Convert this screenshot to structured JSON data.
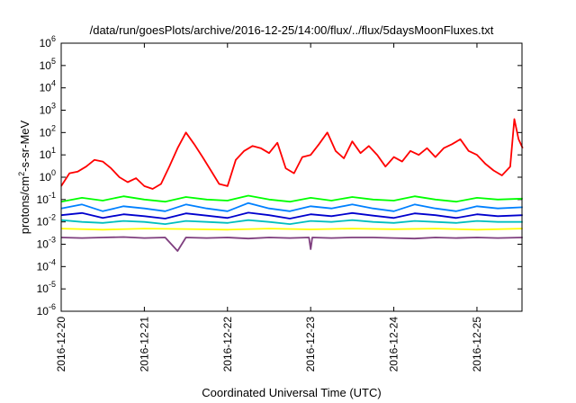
{
  "chart_data": {
    "type": "line",
    "title": "/data/run/goesPlots/archive/2016-12-25/14:00/flux/../flux/5daysMoonFluxes.txt",
    "xlabel": "Coordinated Universal Time (UTC)",
    "ylabel_parts": {
      "before": "protons/cm",
      "sup": "2",
      "after": "-s-sr-MeV"
    },
    "scale": "log",
    "ylim": [
      1e-06,
      1000000.0
    ],
    "xlim": [
      "2016-12-20T00:00",
      "2016-12-25T13:00"
    ],
    "x_ticks": [
      "2016-12-20",
      "2016-12-21",
      "2016-12-22",
      "2016-12-23",
      "2016-12-24",
      "2016-12-25"
    ],
    "y_ticks": [
      {
        "exp": -6,
        "base": "10",
        "sup": "-6"
      },
      {
        "exp": -5,
        "base": "10",
        "sup": "-5"
      },
      {
        "exp": -4,
        "base": "10",
        "sup": "-4"
      },
      {
        "exp": -3,
        "base": "10",
        "sup": "-3"
      },
      {
        "exp": -2,
        "base": "10",
        "sup": "-2"
      },
      {
        "exp": -1,
        "base": "10",
        "sup": "-1"
      },
      {
        "exp": 0,
        "base": "10",
        "sup": "0"
      },
      {
        "exp": 1,
        "base": "10",
        "sup": "1"
      },
      {
        "exp": 2,
        "base": "10",
        "sup": "2"
      },
      {
        "exp": 3,
        "base": "10",
        "sup": "3"
      },
      {
        "exp": 4,
        "base": "10",
        "sup": "4"
      },
      {
        "exp": 5,
        "base": "10",
        "sup": "5"
      },
      {
        "exp": 6,
        "base": "10",
        "sup": "6"
      }
    ],
    "grid": false,
    "legend": "none",
    "series": [
      {
        "color": "#ff0000",
        "x": [
          0,
          0.1,
          0.2,
          0.3,
          0.4,
          0.5,
          0.6,
          0.7,
          0.8,
          0.9,
          1.0,
          1.1,
          1.2,
          1.3,
          1.4,
          1.5,
          1.6,
          1.7,
          1.8,
          1.9,
          2.0,
          2.1,
          2.2,
          2.3,
          2.4,
          2.5,
          2.6,
          2.7,
          2.8,
          2.9,
          3.0,
          3.1,
          3.2,
          3.3,
          3.4,
          3.5,
          3.6,
          3.7,
          3.8,
          3.9,
          4.0,
          4.1,
          4.2,
          4.3,
          4.4,
          4.5,
          4.6,
          4.7,
          4.8,
          4.9,
          5.0,
          5.1,
          5.2,
          5.3,
          5.4,
          5.45,
          5.5,
          5.55
        ],
        "y": [
          0.4,
          1.5,
          1.8,
          3,
          6,
          5,
          2.5,
          1,
          0.6,
          0.9,
          0.4,
          0.3,
          0.5,
          3,
          20,
          100,
          30,
          8,
          2,
          0.5,
          0.4,
          6,
          15,
          25,
          20,
          12,
          35,
          2.5,
          1.5,
          8,
          10,
          30,
          100,
          15,
          7,
          40,
          12,
          25,
          10,
          3,
          8,
          5,
          15,
          10,
          20,
          8,
          20,
          30,
          50,
          15,
          10,
          4,
          2,
          1.2,
          3,
          400,
          50,
          20
        ]
      },
      {
        "color": "#00ff00",
        "x": [
          0,
          0.25,
          0.5,
          0.75,
          1.0,
          1.25,
          1.5,
          1.75,
          2.0,
          2.25,
          2.5,
          2.75,
          3.0,
          3.25,
          3.5,
          3.75,
          4.0,
          4.25,
          4.5,
          4.75,
          5.0,
          5.25,
          5.55
        ],
        "y": [
          0.08,
          0.12,
          0.09,
          0.14,
          0.1,
          0.08,
          0.13,
          0.1,
          0.09,
          0.15,
          0.1,
          0.08,
          0.12,
          0.09,
          0.13,
          0.1,
          0.09,
          0.14,
          0.1,
          0.08,
          0.12,
          0.1,
          0.11
        ]
      },
      {
        "color": "#0080ff",
        "x": [
          0,
          0.25,
          0.5,
          0.75,
          1.0,
          1.25,
          1.5,
          1.75,
          2.0,
          2.25,
          2.5,
          2.75,
          3.0,
          3.25,
          3.5,
          3.75,
          4.0,
          4.25,
          4.5,
          4.75,
          5.0,
          5.25,
          5.55
        ],
        "y": [
          0.04,
          0.06,
          0.03,
          0.05,
          0.04,
          0.03,
          0.06,
          0.04,
          0.03,
          0.07,
          0.04,
          0.03,
          0.05,
          0.04,
          0.06,
          0.04,
          0.03,
          0.06,
          0.04,
          0.03,
          0.05,
          0.04,
          0.045
        ]
      },
      {
        "color": "#0000cd",
        "x": [
          0,
          0.25,
          0.5,
          0.75,
          1.0,
          1.25,
          1.5,
          1.75,
          2.0,
          2.25,
          2.5,
          2.75,
          3.0,
          3.25,
          3.5,
          3.75,
          4.0,
          4.25,
          4.5,
          4.75,
          5.0,
          5.25,
          5.55
        ],
        "y": [
          0.02,
          0.025,
          0.015,
          0.022,
          0.018,
          0.014,
          0.024,
          0.019,
          0.015,
          0.026,
          0.02,
          0.014,
          0.022,
          0.018,
          0.025,
          0.019,
          0.015,
          0.024,
          0.02,
          0.015,
          0.022,
          0.018,
          0.02
        ]
      },
      {
        "color": "#00bfbf",
        "x": [
          0,
          0.25,
          0.5,
          0.75,
          1.0,
          1.25,
          1.5,
          1.75,
          2.0,
          2.25,
          2.5,
          2.75,
          3.0,
          3.25,
          3.5,
          3.75,
          4.0,
          4.25,
          4.5,
          4.75,
          5.0,
          5.25,
          5.55
        ],
        "y": [
          0.012,
          0.01,
          0.009,
          0.011,
          0.01,
          0.008,
          0.011,
          0.01,
          0.009,
          0.012,
          0.01,
          0.008,
          0.011,
          0.01,
          0.012,
          0.01,
          0.009,
          0.011,
          0.01,
          0.009,
          0.011,
          0.01,
          0.01
        ]
      },
      {
        "color": "#ffff00",
        "x": [
          0,
          0.5,
          1.0,
          1.5,
          2.0,
          2.5,
          3.0,
          3.5,
          4.0,
          4.5,
          5.0,
          5.55
        ],
        "y": [
          0.005,
          0.0045,
          0.005,
          0.0048,
          0.0045,
          0.005,
          0.0046,
          0.005,
          0.0047,
          0.005,
          0.0045,
          0.005
        ]
      },
      {
        "color": "#7f3f7f",
        "x": [
          0,
          0.25,
          0.5,
          0.75,
          1.0,
          1.25,
          1.4,
          1.5,
          1.75,
          2.0,
          2.25,
          2.5,
          2.75,
          2.98,
          3.0,
          3.02,
          3.25,
          3.5,
          3.75,
          4.0,
          4.25,
          4.5,
          4.75,
          5.0,
          5.25,
          5.55
        ],
        "y": [
          0.002,
          0.0019,
          0.002,
          0.0021,
          0.0019,
          0.002,
          0.0005,
          0.002,
          0.0019,
          0.002,
          0.0018,
          0.002,
          0.0019,
          0.002,
          0.0006,
          0.002,
          0.0019,
          0.002,
          0.002,
          0.0019,
          0.0018,
          0.002,
          0.0019,
          0.002,
          0.0019,
          0.002
        ]
      }
    ]
  }
}
